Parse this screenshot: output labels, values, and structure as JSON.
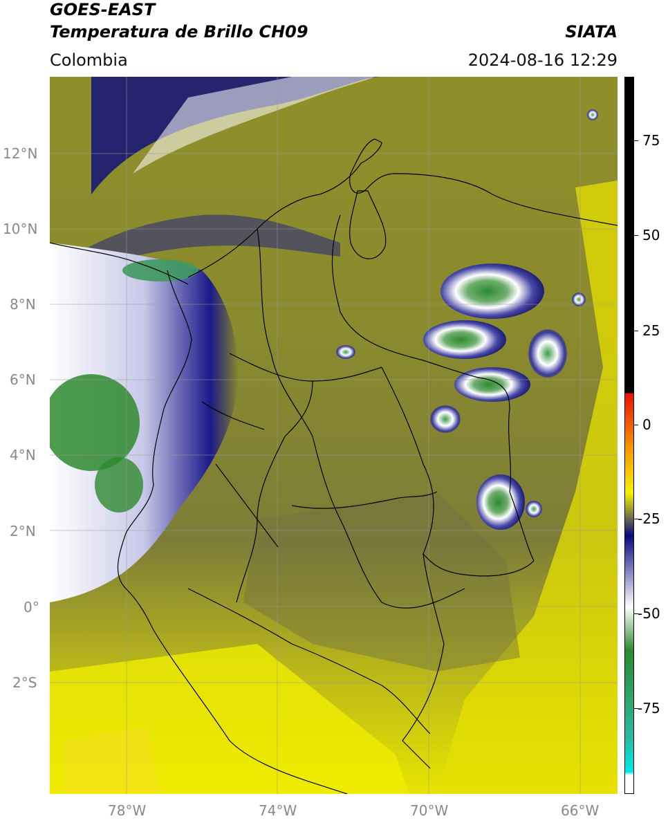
{
  "header": {
    "satellite": "GOES-EAST",
    "product": "Temperatura de Brillo CH09",
    "region": "Colombia",
    "agency": "SIATA",
    "datetime": "2024-08-16 12:29"
  },
  "map": {
    "lat_labels": [
      "12°N",
      "10°N",
      "8°N",
      "6°N",
      "4°N",
      "2°N",
      "0°",
      "2°S"
    ],
    "lon_labels": [
      "78°W",
      "74°W",
      "70°W",
      "66°W"
    ]
  },
  "colorbar": {
    "labels": [
      "75",
      "50",
      "25",
      "0",
      "-25",
      "-50",
      "-75"
    ],
    "colors": {
      "black": "#000000",
      "red": "#e8140a",
      "orange": "#f59b00",
      "yellow": "#f5f000",
      "olive": "#a8a828",
      "gray": "#5a5a5a",
      "navy": "#0a0a80",
      "white": "#ffffff",
      "green": "#2e8a2e",
      "teal": "#2ab8a0",
      "cyan": "#00e8e8"
    }
  }
}
